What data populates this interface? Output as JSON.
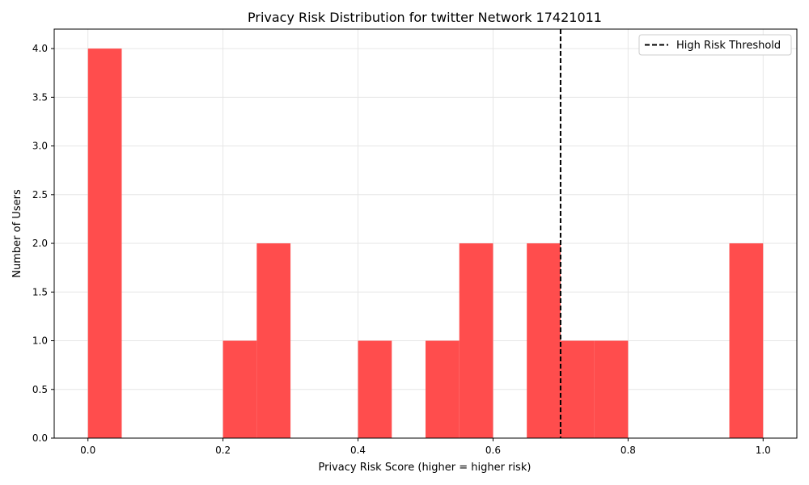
{
  "chart_data": {
    "type": "bar",
    "title": "Privacy Risk Distribution for twitter Network 17421011",
    "xlabel": "Privacy Risk Score (higher = higher risk)",
    "ylabel": "Number of Users",
    "xlim": [
      -0.05,
      1.05
    ],
    "ylim": [
      0,
      4.2
    ],
    "xticks": [
      "0.0",
      "0.2",
      "0.4",
      "0.6",
      "0.8",
      "1.0"
    ],
    "yticks": [
      "0.0",
      "0.5",
      "1.0",
      "1.5",
      "2.0",
      "2.5",
      "3.0",
      "3.5",
      "4.0"
    ],
    "grid": true,
    "bar_color": "#ff4d4d",
    "bins": [
      {
        "start": 0.0,
        "end": 0.05,
        "count": 4
      },
      {
        "start": 0.05,
        "end": 0.1,
        "count": 0
      },
      {
        "start": 0.1,
        "end": 0.15,
        "count": 0
      },
      {
        "start": 0.15,
        "end": 0.2,
        "count": 0
      },
      {
        "start": 0.2,
        "end": 0.25,
        "count": 1
      },
      {
        "start": 0.25,
        "end": 0.3,
        "count": 2
      },
      {
        "start": 0.3,
        "end": 0.35,
        "count": 0
      },
      {
        "start": 0.35,
        "end": 0.4,
        "count": 0
      },
      {
        "start": 0.4,
        "end": 0.45,
        "count": 1
      },
      {
        "start": 0.45,
        "end": 0.5,
        "count": 0
      },
      {
        "start": 0.5,
        "end": 0.55,
        "count": 1
      },
      {
        "start": 0.55,
        "end": 0.6,
        "count": 2
      },
      {
        "start": 0.6,
        "end": 0.65,
        "count": 0
      },
      {
        "start": 0.65,
        "end": 0.7,
        "count": 2
      },
      {
        "start": 0.7,
        "end": 0.75,
        "count": 1
      },
      {
        "start": 0.75,
        "end": 0.8,
        "count": 1
      },
      {
        "start": 0.8,
        "end": 0.85,
        "count": 0
      },
      {
        "start": 0.85,
        "end": 0.9,
        "count": 0
      },
      {
        "start": 0.9,
        "end": 0.95,
        "count": 0
      },
      {
        "start": 0.95,
        "end": 1.0,
        "count": 2
      }
    ],
    "threshold": {
      "value": 0.7,
      "label": "High Risk Threshold",
      "style": "dashed",
      "color": "#000000"
    },
    "legend_position": "top-right"
  }
}
